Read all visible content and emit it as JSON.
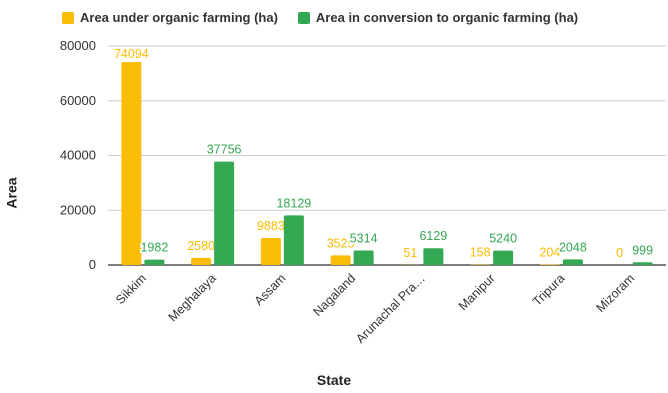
{
  "chart_data": {
    "type": "bar",
    "xlabel": "State",
    "ylabel": "Area",
    "ylim": [
      0,
      80000
    ],
    "yticks": [
      0,
      20000,
      40000,
      60000,
      80000
    ],
    "grid": true,
    "legend_position": "top-left",
    "categories": [
      "Sikkim",
      "Meghalaya",
      "Assam",
      "Nagaland",
      "Arunachal Pra…",
      "Manipur",
      "Tripura",
      "Mizoram"
    ],
    "series": [
      {
        "name": "Area under organic farming (ha)",
        "color": "#fbbc04",
        "values": [
          74094,
          2580,
          9883,
          3525,
          51,
          158,
          204,
          0
        ]
      },
      {
        "name": "Area in conversion to organic farming (ha)",
        "color": "#34a853",
        "values": [
          1982,
          37756,
          18129,
          5314,
          6129,
          5240,
          2048,
          999
        ]
      }
    ]
  }
}
